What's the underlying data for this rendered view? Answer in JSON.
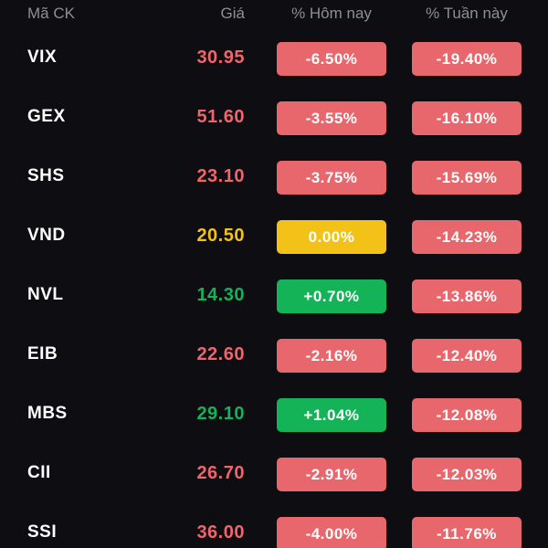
{
  "header": {
    "code": "Mã CK",
    "price": "Giá",
    "today": "% Hôm nay",
    "week": "% Tuần này"
  },
  "colors": {
    "down": "#e8676c",
    "up": "#14b357",
    "flat": "#f2c218",
    "price_down": "#f0656b",
    "price_up": "#16b15a",
    "price_flat": "#f2c218"
  },
  "rows": [
    {
      "code": "VIX",
      "price": "30.95",
      "today": "-6.50%",
      "week": "-19.40%",
      "today_status": "down",
      "week_status": "down"
    },
    {
      "code": "GEX",
      "price": "51.60",
      "today": "-3.55%",
      "week": "-16.10%",
      "today_status": "down",
      "week_status": "down"
    },
    {
      "code": "SHS",
      "price": "23.10",
      "today": "-3.75%",
      "week": "-15.69%",
      "today_status": "down",
      "week_status": "down"
    },
    {
      "code": "VND",
      "price": "20.50",
      "today": "0.00%",
      "week": "-14.23%",
      "today_status": "flat",
      "week_status": "down"
    },
    {
      "code": "NVL",
      "price": "14.30",
      "today": "+0.70%",
      "week": "-13.86%",
      "today_status": "up",
      "week_status": "down"
    },
    {
      "code": "EIB",
      "price": "22.60",
      "today": "-2.16%",
      "week": "-12.40%",
      "today_status": "down",
      "week_status": "down"
    },
    {
      "code": "MBS",
      "price": "29.10",
      "today": "+1.04%",
      "week": "-12.08%",
      "today_status": "up",
      "week_status": "down"
    },
    {
      "code": "CII",
      "price": "26.70",
      "today": "-2.91%",
      "week": "-12.03%",
      "today_status": "down",
      "week_status": "down"
    },
    {
      "code": "SSI",
      "price": "36.00",
      "today": "-4.00%",
      "week": "-11.76%",
      "today_status": "down",
      "week_status": "down"
    }
  ]
}
